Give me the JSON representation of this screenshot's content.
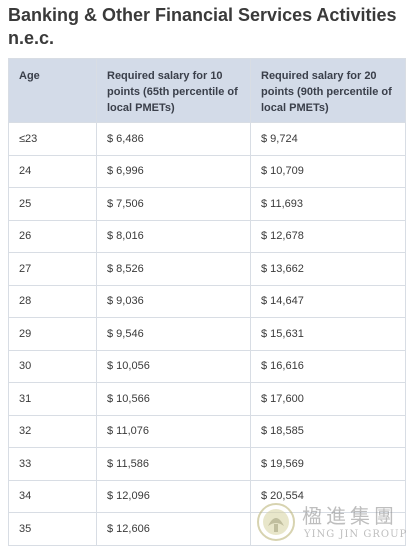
{
  "title": "Banking & Other Financial Services Activities n.e.c.",
  "table": {
    "headers": [
      "Age",
      "Required salary for 10 points (65th percentile of local PMETs)",
      "Required salary for 20 points (90th percentile of local PMETs)"
    ],
    "rows": [
      [
        "≤23",
        "$ 6,486",
        "$ 9,724"
      ],
      [
        "24",
        "$ 6,996",
        "$ 10,709"
      ],
      [
        "25",
        "$ 7,506",
        "$ 11,693"
      ],
      [
        "26",
        "$ 8,016",
        "$ 12,678"
      ],
      [
        "27",
        "$ 8,526",
        "$ 13,662"
      ],
      [
        "28",
        "$ 9,036",
        "$ 14,647"
      ],
      [
        "29",
        "$ 9,546",
        "$ 15,631"
      ],
      [
        "30",
        "$ 10,056",
        "$ 16,616"
      ],
      [
        "31",
        "$ 10,566",
        "$ 17,600"
      ],
      [
        "32",
        "$ 11,076",
        "$ 18,585"
      ],
      [
        "33",
        "$ 11,586",
        "$ 19,569"
      ],
      [
        "34",
        "$ 12,096",
        "$ 20,554"
      ],
      [
        "35",
        "$ 12,606",
        ""
      ]
    ]
  },
  "watermark": {
    "chinese": "楹進集團",
    "english": "YING JIN GROUP",
    "icon": "ying-jin-logo-icon",
    "color": "#8a8a8a"
  }
}
